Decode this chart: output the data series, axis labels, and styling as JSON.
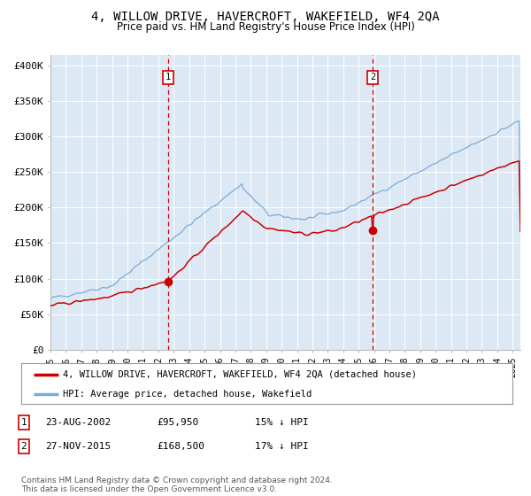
{
  "title": "4, WILLOW DRIVE, HAVERCROFT, WAKEFIELD, WF4 2QA",
  "subtitle": "Price paid vs. HM Land Registry's House Price Index (HPI)",
  "title_fontsize": 10,
  "subtitle_fontsize": 8.5,
  "ylabel_ticks": [
    "£0",
    "£50K",
    "£100K",
    "£150K",
    "£200K",
    "£250K",
    "£300K",
    "£350K",
    "£400K"
  ],
  "ytick_values": [
    0,
    50000,
    100000,
    150000,
    200000,
    250000,
    300000,
    350000,
    400000
  ],
  "ylim": [
    0,
    415000
  ],
  "xlim_start": 1995.0,
  "xlim_end": 2025.5,
  "xtick_years": [
    1995,
    1996,
    1997,
    1998,
    1999,
    2000,
    2001,
    2002,
    2003,
    2004,
    2005,
    2006,
    2007,
    2008,
    2009,
    2010,
    2011,
    2012,
    2013,
    2014,
    2015,
    2016,
    2017,
    2018,
    2019,
    2020,
    2021,
    2022,
    2023,
    2024,
    2025
  ],
  "sale1_x": 2002.64,
  "sale1_y": 95950,
  "sale2_x": 2015.91,
  "sale2_y": 168500,
  "bg_color": "#dce9f5",
  "grid_color": "#ffffff",
  "red_line_color": "#cc0000",
  "blue_line_color": "#7aabdb",
  "legend_line1": "4, WILLOW DRIVE, HAVERCROFT, WAKEFIELD, WF4 2QA (detached house)",
  "legend_line2": "HPI: Average price, detached house, Wakefield",
  "table_row1": [
    "1",
    "23-AUG-2002",
    "£95,950",
    "15% ↓ HPI"
  ],
  "table_row2": [
    "2",
    "27-NOV-2015",
    "£168,500",
    "17% ↓ HPI"
  ],
  "footnote": "Contains HM Land Registry data © Crown copyright and database right 2024.\nThis data is licensed under the Open Government Licence v3.0."
}
